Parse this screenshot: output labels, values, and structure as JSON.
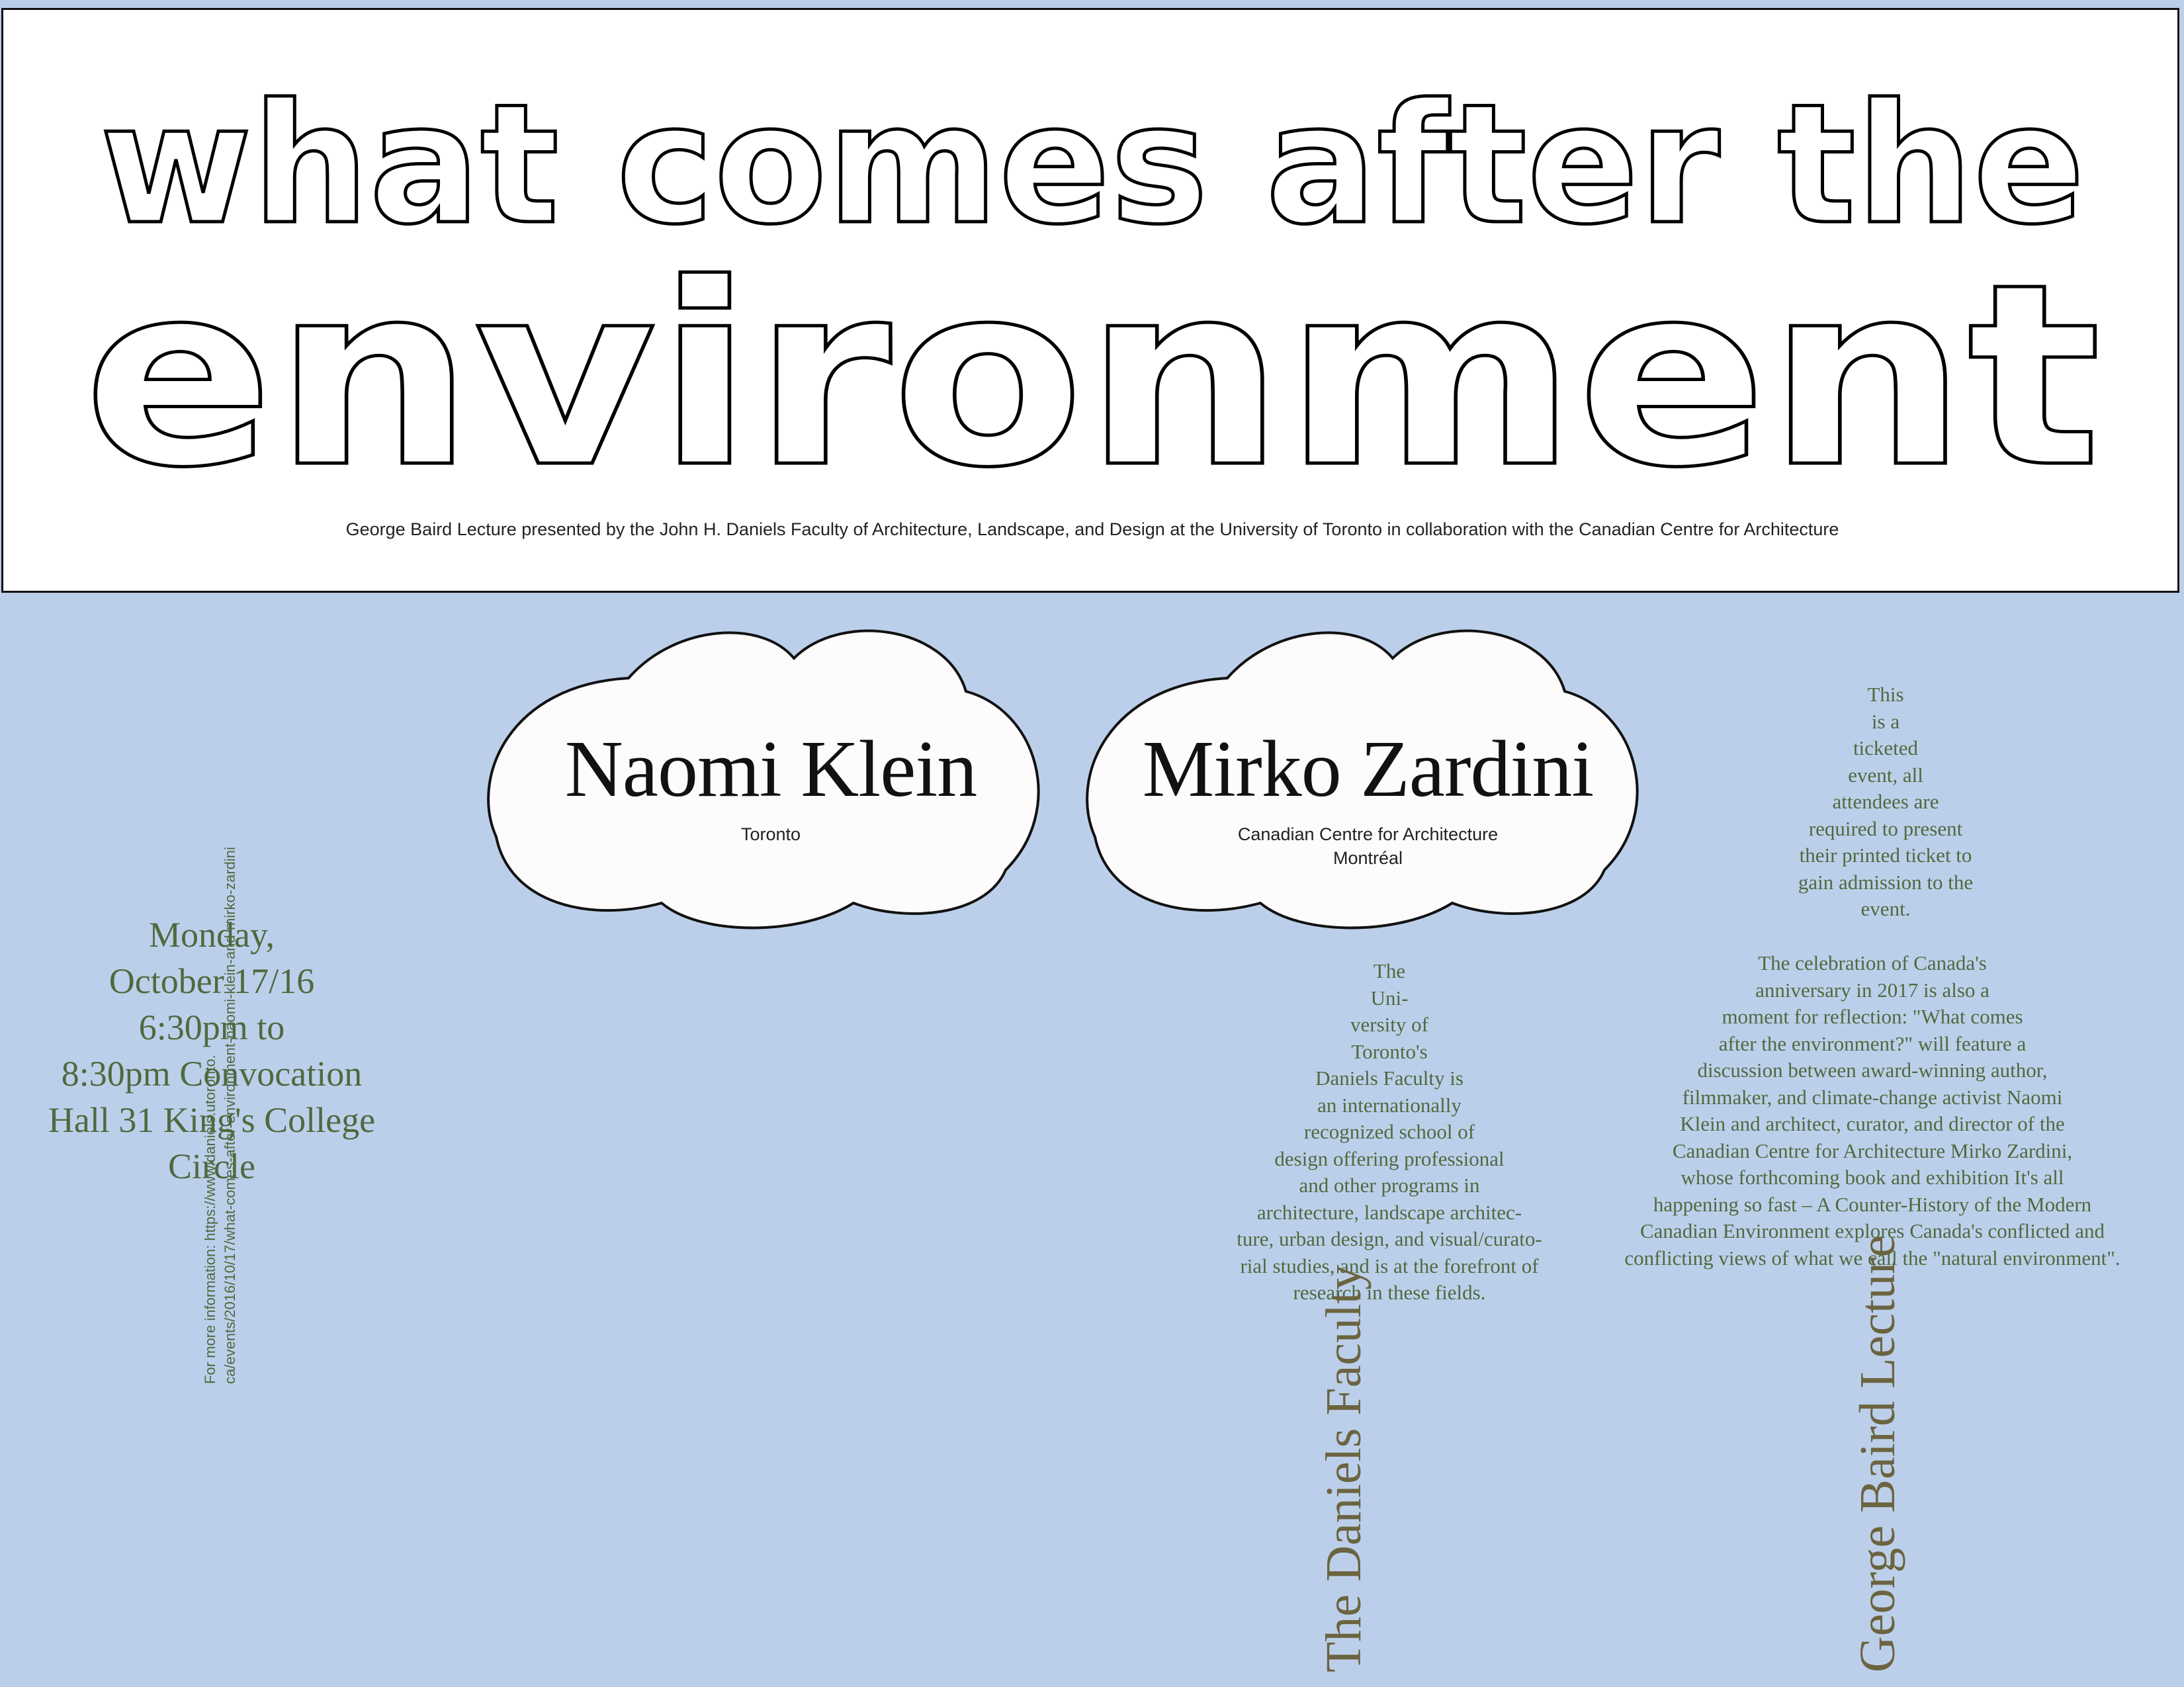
{
  "header": {
    "headline_line1": "what comes after the",
    "headline_line2": "environment",
    "subtitle": "George Baird Lecture presented by the John H. Daniels Faculty of Architecture, Landscape, and Design at the University of Toronto in collaboration with the Canadian Centre for Architecture"
  },
  "speakers": [
    {
      "name": "Naomi Klein",
      "affiliation": [
        "Toronto"
      ]
    },
    {
      "name": "Mirko Zardini",
      "affiliation": [
        "Canadian Centre for Architecture",
        "Montréal"
      ]
    }
  ],
  "event": {
    "date_lines": [
      "Monday,",
      "October 17/16",
      "6:30pm to",
      "8:30pm Convocation",
      "Hall 31 King's College",
      "Circle"
    ],
    "info_lines": [
      "For more information: https://www.daniels.utoronto.",
      "ca/events/2016/10/17/what-comes-after-environment-naomi-klein-and-mirko-zardini"
    ]
  },
  "ticket_notice": [
    "This",
    "is a",
    "ticketed",
    "event, all",
    "attendees are",
    "required to present",
    "their printed ticket to",
    "gain admission to the",
    "event."
  ],
  "faculty_blurb": [
    "The",
    "Uni-",
    "versity of",
    "Toronto's",
    "Daniels Faculty is",
    "an internationally",
    "recognized school of",
    "design offering professional",
    "and other programs in",
    "architecture, landscape architec-",
    "ture, urban design, and visual/curato-",
    "rial studies, and is at the forefront of",
    "research in these fields."
  ],
  "lecture_blurb": [
    "The celebration of Canada's",
    "anniversary in 2017 is also a",
    "moment for reflection: \"What comes",
    "after the environment?\" will feature a",
    "discussion between award-winning author,",
    "filmmaker, and climate-change activist Naomi",
    "Klein and architect, curator, and director of the",
    "Canadian Centre for Architecture Mirko Zardini,",
    "whose forthcoming book and exhibition It's all",
    "happening so fast – A Counter-History of the Modern",
    "Canadian Environment explores Canada's conflicted and",
    "conflicting views of what we call the \"natural environment\"."
  ],
  "vertical_labels": {
    "faculty": "The Daniels Faculty",
    "lecture": "George Baird Lecture"
  },
  "colors": {
    "background": "#bccfea",
    "text_green": "#4e6a3f",
    "text_olive": "#6b6440",
    "cloud_fill": "#fdfbfb"
  }
}
